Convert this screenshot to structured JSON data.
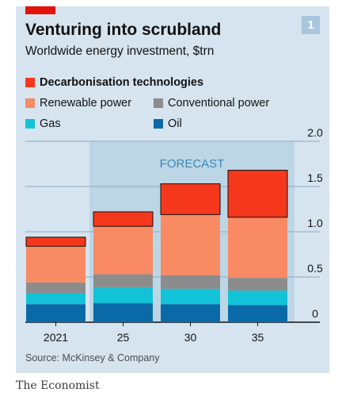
{
  "header": {
    "title": "Venturing into scrubland",
    "subtitle": "Worldwide energy investment, $trn",
    "badge": "1"
  },
  "legend": [
    {
      "label": "Decarbonisation technologies",
      "color": "#f5371b",
      "bold": true
    },
    {
      "label": "Renewable power",
      "color": "#f88a64"
    },
    {
      "label": "Conventional power",
      "color": "#8c8c8c"
    },
    {
      "label": "Gas",
      "color": "#12c2d8"
    },
    {
      "label": "Oil",
      "color": "#0a6aa8"
    }
  ],
  "chart_data": {
    "type": "bar",
    "stacked": true,
    "categories": [
      "2021",
      "25",
      "30",
      "35"
    ],
    "series": [
      {
        "name": "Oil",
        "color": "#0a6aa8",
        "values": [
          0.2,
          0.21,
          0.2,
          0.19
        ]
      },
      {
        "name": "Gas",
        "color": "#12c2d8",
        "values": [
          0.12,
          0.17,
          0.17,
          0.16
        ]
      },
      {
        "name": "Conventional power",
        "color": "#8c8c8c",
        "values": [
          0.12,
          0.15,
          0.15,
          0.14
        ]
      },
      {
        "name": "Renewable power",
        "color": "#f88a64",
        "values": [
          0.4,
          0.53,
          0.67,
          0.67
        ]
      },
      {
        "name": "Decarbonisation technologies",
        "color": "#f5371b",
        "values": [
          0.1,
          0.16,
          0.34,
          0.52
        ]
      }
    ],
    "yticks": [
      0,
      0.5,
      1.0,
      1.5,
      2.0
    ],
    "ytick_labels": [
      "0",
      "0.5",
      "1.0",
      "1.5",
      "2.0"
    ],
    "ylim": [
      0,
      2.0
    ],
    "forecast_label": "FORECAST",
    "forecast_start_category": "25",
    "y_axis_side": "right",
    "grid": true
  },
  "footer": {
    "source": "Source: McKinsey & Company",
    "brand": "The Economist"
  }
}
